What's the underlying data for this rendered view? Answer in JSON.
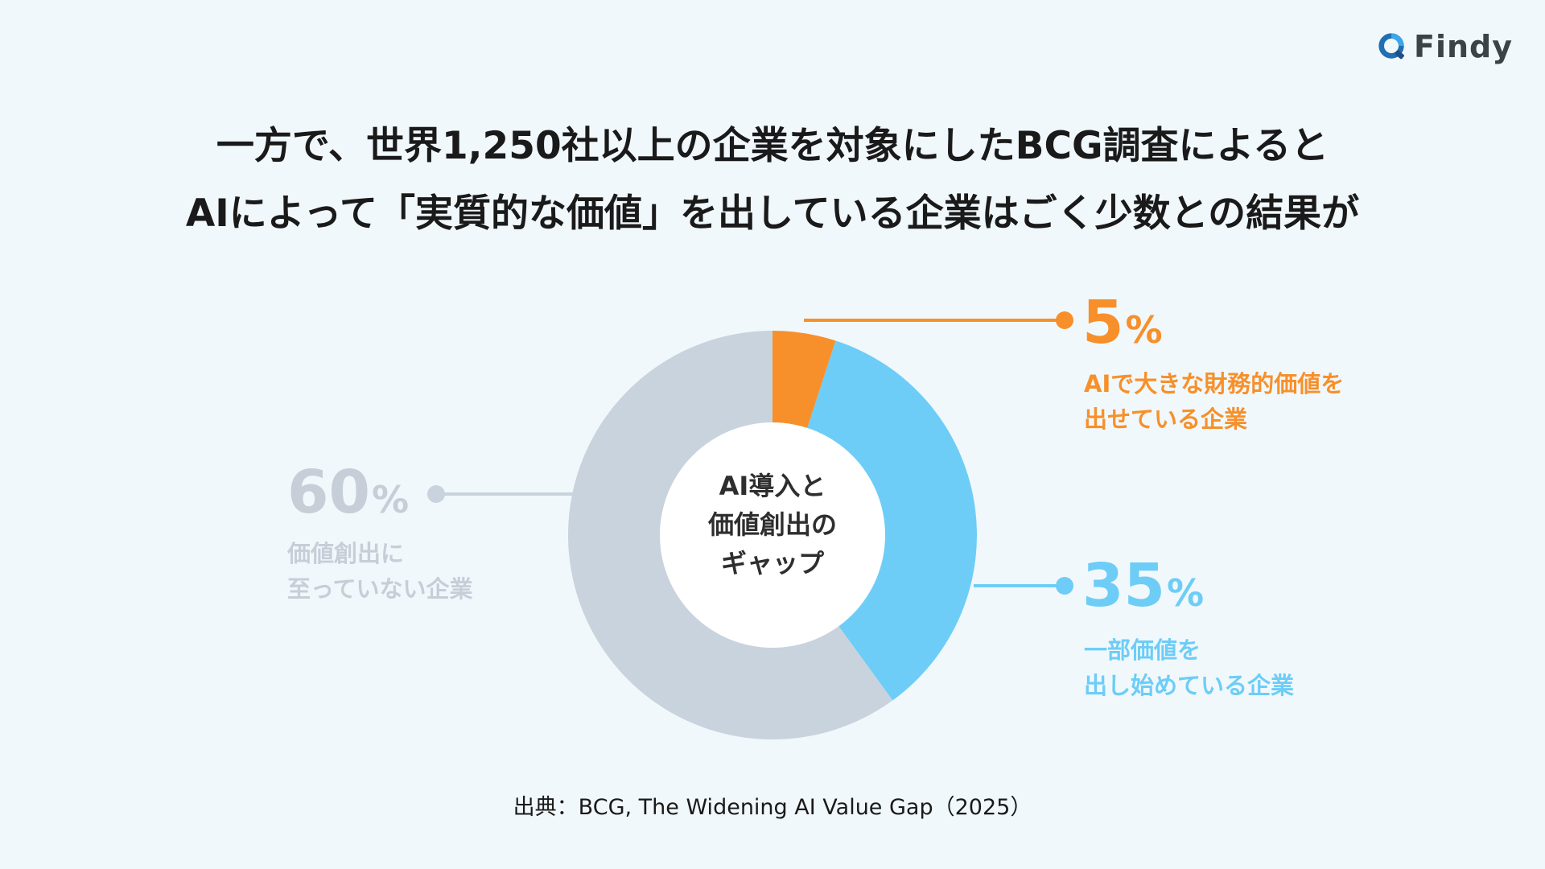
{
  "brand": {
    "name": "Findy",
    "icon": "findy-q-icon"
  },
  "headline": {
    "line1": "一方で、世界1,250社以上の企業を対象にしたBCG調査によると",
    "line2": "AIによって「実質的な価値」を出している企業はごく少数との結果が"
  },
  "colors": {
    "orange": "#f7902a",
    "blue": "#6dcdf7",
    "gray": "#c9d3dd",
    "gray_text": "#c6ced7",
    "background": "#f1f8fc"
  },
  "chart_data": {
    "type": "pie",
    "donut": true,
    "center_label": [
      "AI導入と",
      "価値創出の",
      "ギャップ"
    ],
    "slices": [
      {
        "value": 5,
        "num": "5",
        "unit": "%",
        "label": [
          "AIで大きな財務的価値を",
          "出せている企業"
        ],
        "color": "#f7902a"
      },
      {
        "value": 35,
        "num": "35",
        "unit": "%",
        "label": [
          "一部価値を",
          "出し始めている企業"
        ],
        "color": "#6dcdf7"
      },
      {
        "value": 60,
        "num": "60",
        "unit": "%",
        "label": [
          "価値創出に",
          "至っていない企業"
        ],
        "color": "#c9d3dd"
      }
    ]
  },
  "source": "出典：BCG, The Widening AI Value Gap（2025）"
}
